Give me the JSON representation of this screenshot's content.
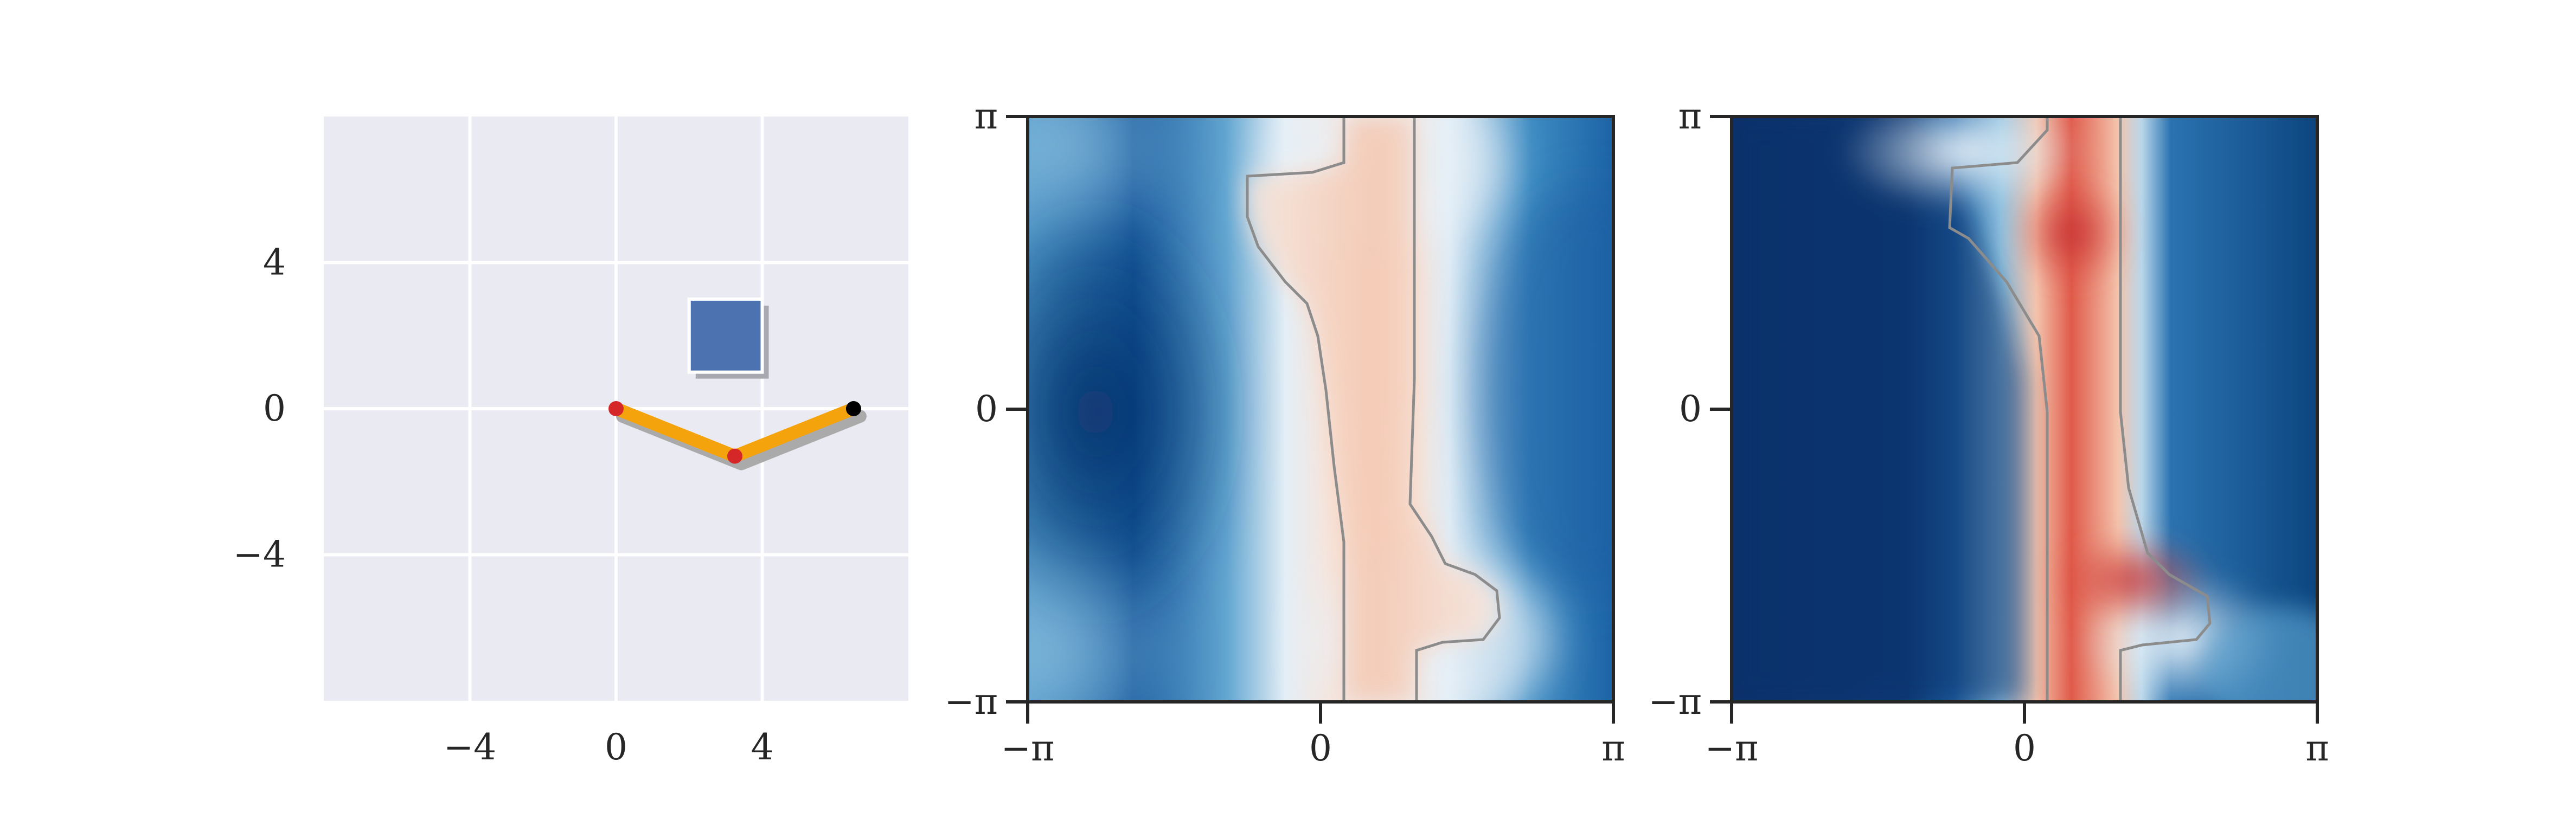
{
  "chart_data": [
    {
      "type": "scatter",
      "panel": "workspace",
      "background": "#eaeaf2",
      "grid": true,
      "xlim": [
        -8,
        8
      ],
      "ylim": [
        -8,
        8
      ],
      "x_ticks": [
        -4,
        0,
        4
      ],
      "y_ticks": [
        4,
        0,
        -4
      ],
      "x_tick_labels": [
        "−4",
        "0",
        "4"
      ],
      "y_tick_labels": [
        "4",
        "0",
        "−4"
      ],
      "obstacle": {
        "shape": "square",
        "center": [
          3,
          2
        ],
        "side": 2,
        "color": "#4c72b0"
      },
      "arm": {
        "color": "#f4a30c",
        "shadow_color": "#aaaaaa",
        "points": [
          [
            0,
            0
          ],
          [
            3.25,
            -1.3
          ],
          [
            6.5,
            0
          ]
        ],
        "joint_colors": [
          "#d62728",
          "#d62728",
          "#000000"
        ]
      }
    },
    {
      "type": "heatmap",
      "panel": "configuration-space-1",
      "colormap": "RdBu_r",
      "xlim": [
        "−π",
        "π"
      ],
      "ylim": [
        "−π",
        "π"
      ],
      "x_tick_labels": [
        "−π",
        "0",
        "π"
      ],
      "y_tick_labels": [
        "π",
        "0",
        "−π"
      ],
      "contour_color": "#8c8c8c",
      "blue_region_levels": [
        "weak",
        "strong",
        "medium",
        "strong"
      ]
    },
    {
      "type": "heatmap",
      "panel": "configuration-space-2",
      "colormap": "RdBu_r",
      "xlim": [
        "−π",
        "π"
      ],
      "ylim": [
        "−π",
        "π"
      ],
      "x_tick_labels": [
        "−π",
        "0",
        "π"
      ],
      "y_tick_labels": [
        "π",
        "0",
        "−π"
      ],
      "contour_color": "#8c8c8c"
    }
  ]
}
